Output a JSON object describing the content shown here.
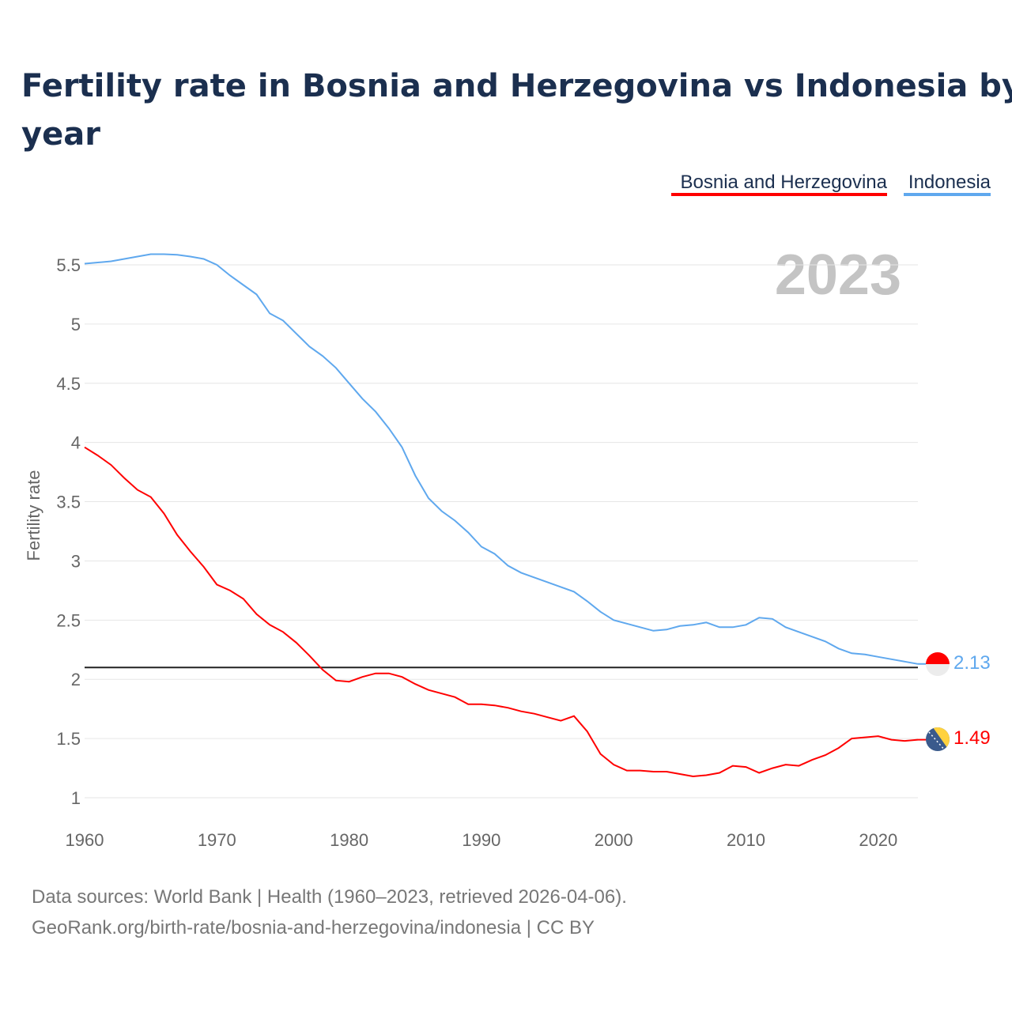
{
  "chart_data": {
    "type": "line",
    "title_line1": "Fertility rate in Bosnia and Herzegovina vs Indonesia by",
    "title_line2": "year",
    "ylabel": "Fertility rate",
    "xlabel": "",
    "ylim": [
      1,
      5.5
    ],
    "xlim": [
      1960,
      2023
    ],
    "y_ticks": [
      "1",
      "1.5",
      "2",
      "2.5",
      "3",
      "3.5",
      "4",
      "4.5",
      "5",
      "5.5"
    ],
    "x_ticks": [
      "1960",
      "1970",
      "1980",
      "1990",
      "2000",
      "2010",
      "2020"
    ],
    "year_watermark": "2023",
    "reference_line": 2.1,
    "grid": true,
    "legend_position": "top-right",
    "x": [
      1960,
      1961,
      1962,
      1963,
      1964,
      1965,
      1966,
      1967,
      1968,
      1969,
      1970,
      1971,
      1972,
      1973,
      1974,
      1975,
      1976,
      1977,
      1978,
      1979,
      1980,
      1981,
      1982,
      1983,
      1984,
      1985,
      1986,
      1987,
      1988,
      1989,
      1990,
      1991,
      1992,
      1993,
      1994,
      1995,
      1996,
      1997,
      1998,
      1999,
      2000,
      2001,
      2002,
      2003,
      2004,
      2005,
      2006,
      2007,
      2008,
      2009,
      2010,
      2011,
      2012,
      2013,
      2014,
      2015,
      2016,
      2017,
      2018,
      2019,
      2020,
      2021,
      2022,
      2023
    ],
    "series": [
      {
        "name": "Bosnia and Herzegovina",
        "color": "#ff0000",
        "end_label": "1.49",
        "values": [
          3.96,
          3.89,
          3.81,
          3.7,
          3.6,
          3.54,
          3.4,
          3.22,
          3.08,
          2.95,
          2.8,
          2.75,
          2.68,
          2.55,
          2.46,
          2.4,
          2.31,
          2.2,
          2.08,
          1.99,
          1.98,
          2.02,
          2.05,
          2.05,
          2.02,
          1.96,
          1.91,
          1.88,
          1.85,
          1.79,
          1.79,
          1.78,
          1.76,
          1.73,
          1.71,
          1.68,
          1.65,
          1.69,
          1.56,
          1.37,
          1.28,
          1.23,
          1.23,
          1.22,
          1.22,
          1.2,
          1.18,
          1.19,
          1.21,
          1.27,
          1.26,
          1.21,
          1.25,
          1.28,
          1.27,
          1.32,
          1.36,
          1.42,
          1.5,
          1.51,
          1.52,
          1.49,
          1.48,
          1.49
        ]
      },
      {
        "name": "Indonesia",
        "color": "#5fa8ee",
        "end_label": "2.13",
        "values": [
          5.51,
          5.52,
          5.53,
          5.55,
          5.57,
          5.59,
          5.59,
          5.585,
          5.57,
          5.55,
          5.5,
          5.41,
          5.33,
          5.25,
          5.09,
          5.03,
          4.92,
          4.81,
          4.73,
          4.63,
          4.5,
          4.37,
          4.26,
          4.12,
          3.96,
          3.72,
          3.53,
          3.42,
          3.34,
          3.24,
          3.12,
          3.06,
          2.96,
          2.9,
          2.86,
          2.82,
          2.78,
          2.74,
          2.66,
          2.57,
          2.5,
          2.47,
          2.44,
          2.41,
          2.42,
          2.45,
          2.46,
          2.48,
          2.44,
          2.44,
          2.46,
          2.52,
          2.51,
          2.44,
          2.4,
          2.36,
          2.32,
          2.26,
          2.22,
          2.21,
          2.19,
          2.17,
          2.15,
          2.13
        ]
      }
    ]
  },
  "footer": {
    "line1": "Data sources: World Bank | Health (1960–2023, retrieved 2026-04-06).",
    "line2": "GeoRank.org/birth-rate/bosnia-and-herzegovina/indonesia | CC BY"
  }
}
